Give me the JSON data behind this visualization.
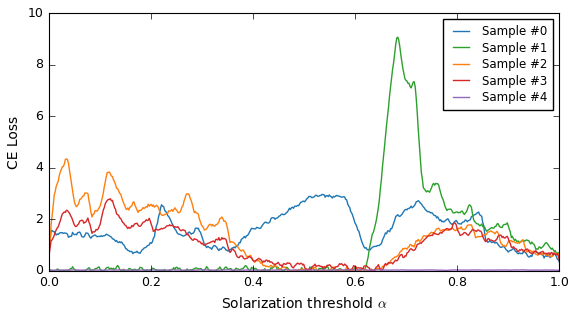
{
  "title": "",
  "xlabel": "Solarization threshold $\\alpha$",
  "ylabel": "CE Loss",
  "xlim": [
    0.0,
    1.0
  ],
  "ylim": [
    0.0,
    10.0
  ],
  "yticks": [
    0,
    2,
    4,
    6,
    8,
    10
  ],
  "xticks": [
    0.0,
    0.2,
    0.4,
    0.6,
    0.8,
    1.0
  ],
  "colors": {
    "sample0": "#1f77b4",
    "sample1": "#2ca02c",
    "sample2": "#ff7f0e",
    "sample3": "#d62728",
    "sample4": "#9467bd"
  },
  "legend_labels": [
    "Sample #0",
    "Sample #1",
    "Sample #2",
    "Sample #3",
    "Sample #4"
  ],
  "n_points": 500,
  "figsize": [
    5.76,
    3.18
  ],
  "dpi": 100
}
